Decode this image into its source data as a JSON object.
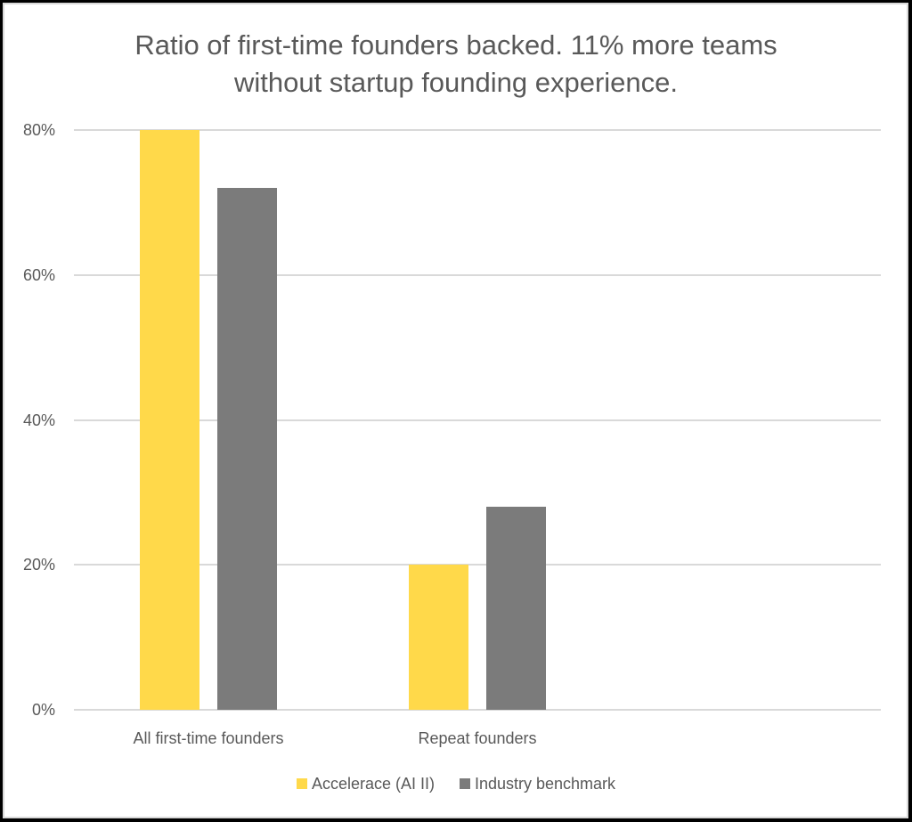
{
  "chart_data": {
    "type": "bar",
    "title": "Ratio of first-time founders backed. 11% more teams without startup founding experience.",
    "title_lines": [
      "Ratio of first-time founders backed. 11% more teams",
      "without startup founding experience."
    ],
    "categories": [
      "All first-time founders",
      "Repeat founders",
      ""
    ],
    "series": [
      {
        "name": "Accelerace (AI II)",
        "color": "#FFD94A",
        "values": [
          80,
          20,
          null
        ]
      },
      {
        "name": "Industry benchmark",
        "color": "#7B7B7B",
        "values": [
          72,
          28,
          null
        ]
      }
    ],
    "xlabel": "",
    "ylabel": "",
    "ylim": [
      0,
      80
    ],
    "yticks": [
      "0%",
      "20%",
      "40%",
      "60%",
      "80%"
    ],
    "grid": true,
    "legend_position": "bottom"
  },
  "colors": {
    "text": "#595959",
    "grid": "#D9D9D9",
    "accent_yellow": "#FFD94A",
    "benchmark_gray": "#7B7B7B"
  }
}
